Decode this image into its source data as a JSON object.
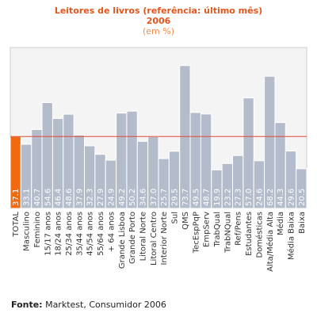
{
  "chart_data": {
    "type": "bar",
    "title": "Leitores de livros (referência: último mês)",
    "subtitle": "2006",
    "unit_note": "(em %)",
    "categories": [
      "TOTAL",
      "Masculino",
      "Feminino",
      "15/17 anos",
      "18/24 anos",
      "25/34 anos",
      "35/44 anos",
      "45/54 anos",
      "55/64 anos",
      "+ 64 anos",
      "Grande Lisboa",
      "Grande Porto",
      "Litoral Norte",
      "Litoral Centro",
      "Interior Norte",
      "Sul",
      "QMS",
      "TecEspPqP",
      "EmpServ",
      "TrabQual",
      "TrabNQual",
      "Ref/Pens",
      "Estudantes",
      "Domésticas",
      "Alta/Média Alta",
      "Média",
      "Média Baixa",
      "Baixa"
    ],
    "values": [
      37.1,
      33.1,
      40.7,
      54.6,
      46.4,
      48.6,
      37.9,
      32.3,
      27.9,
      24.9,
      49.2,
      50.2,
      34.6,
      37.0,
      25.7,
      29.5,
      73.7,
      49.5,
      48.7,
      19.9,
      23.2,
      27.3,
      57.0,
      24.6,
      68.2,
      44.3,
      29.6,
      20.5
    ],
    "value_labels": [
      "37.1",
      "33.1",
      "40.7",
      "54.6",
      "46.4",
      "48.6",
      "37.9",
      "32.3",
      "27.9",
      "24.9",
      "49.2",
      "50.2",
      "34.6",
      "37.0",
      "25.7",
      "29.5",
      "73.7",
      "49.5",
      "48.7",
      "19.9",
      "23.2",
      "27.3",
      "57.0",
      "24.6",
      "68.2",
      "44.3",
      "29.6",
      "20.5"
    ],
    "color": "#b4bccb",
    "highlight_color": "#f26a10",
    "ylim": [
      0,
      83
    ],
    "source_label": "Fonte:",
    "source": "Marktest, Consumidor 2006"
  }
}
